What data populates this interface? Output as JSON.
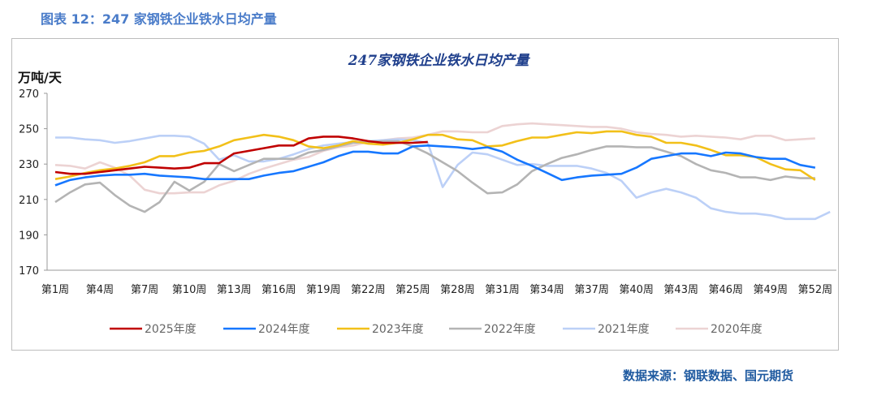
{
  "figure_title": "图表 12：247 家钢铁企业铁水日均产量",
  "source": "数据来源：钢联数据、国元期货",
  "chart_data": {
    "type": "line",
    "title": "247家钢铁企业铁水日均产量",
    "ylabel": "万吨/天",
    "xlabel": "",
    "ylim": [
      170,
      270
    ],
    "yticks": [
      170,
      190,
      210,
      230,
      250,
      270
    ],
    "xtick_labels": [
      "第1周",
      "第4周",
      "第7周",
      "第10周",
      "第13周",
      "第16周",
      "第19周",
      "第22周",
      "第25周",
      "第28周",
      "第31周",
      "第34周",
      "第37周",
      "第40周",
      "第43周",
      "第46周",
      "第49周",
      "第52周"
    ],
    "xtick_weeks": [
      1,
      4,
      7,
      10,
      13,
      16,
      19,
      22,
      25,
      28,
      31,
      34,
      37,
      40,
      43,
      46,
      49,
      52
    ],
    "grid": false,
    "legend_position": "bottom",
    "series": [
      {
        "name": "2025年度",
        "color": "#c00000",
        "values": [
          225.5,
          224.5,
          224.5,
          225.5,
          226.5,
          227.5,
          228.5,
          228,
          227.5,
          228,
          230.5,
          230.5,
          236,
          237.5,
          239,
          240.5,
          240.5,
          244.5,
          245.5,
          245.5,
          244.5,
          243,
          242,
          242,
          242,
          242.5
        ]
      },
      {
        "name": "2024年度",
        "color": "#1677ff",
        "values": [
          218,
          221,
          222.5,
          223.5,
          224,
          224,
          224.5,
          223.5,
          223,
          222.5,
          221.5,
          221.5,
          221.5,
          221.5,
          223.5,
          225,
          226,
          228.5,
          231,
          234.5,
          237,
          237,
          236,
          236,
          240,
          240.5,
          240,
          239.5,
          238.5,
          239.5,
          237,
          232.5,
          229,
          225,
          221,
          222.5,
          223.5,
          224,
          224.5,
          228,
          233,
          234.5,
          236,
          236,
          234.5,
          236.5,
          236,
          234,
          233,
          233,
          229.5,
          228
        ]
      },
      {
        "name": "2023年度",
        "color": "#f2c019",
        "values": [
          221.5,
          223,
          225,
          226.5,
          227.5,
          229,
          231,
          234.5,
          234.5,
          236.5,
          237.5,
          240,
          243.5,
          245,
          246.5,
          245.5,
          243.5,
          240,
          239,
          240.5,
          243,
          241.5,
          241,
          242,
          244,
          246.5,
          246.5,
          244,
          243.5,
          240,
          240.5,
          243,
          245,
          245,
          246.5,
          248,
          247.5,
          248.5,
          248.5,
          246.5,
          245.5,
          242,
          242,
          240.5,
          238,
          235,
          235,
          234,
          230,
          227,
          226.5,
          221
        ]
      },
      {
        "name": "2022年度",
        "color": "#b4b4b4",
        "values": [
          208.5,
          214,
          218.5,
          219.5,
          212.5,
          206.5,
          203,
          208.5,
          220,
          215,
          220,
          230,
          226,
          229.5,
          233,
          233,
          233,
          236.5,
          238,
          240,
          242,
          242.5,
          243,
          243,
          240,
          236,
          231,
          226,
          219.5,
          213.5,
          214,
          218.5,
          226,
          230,
          233.5,
          235.5,
          238,
          240,
          240,
          239.5,
          239.5,
          237,
          234.5,
          230,
          226.5,
          225,
          222.5,
          222.5,
          221,
          223,
          222,
          222
        ]
      },
      {
        "name": "2021年度",
        "color": "#bcd0f7",
        "values": [
          245,
          245,
          244,
          243.5,
          242,
          243,
          244.5,
          246,
          246,
          245.5,
          241.5,
          232.5,
          235,
          231.5,
          231.5,
          233,
          235.5,
          238.5,
          240.5,
          241.5,
          242.5,
          243,
          243.5,
          244,
          243.5,
          242,
          217,
          229.5,
          236.5,
          235.5,
          232.5,
          229.5,
          230,
          229,
          229,
          229,
          227.5,
          225,
          220.5,
          211,
          214,
          216,
          214,
          211,
          205,
          203,
          202,
          202,
          201,
          199,
          199,
          199,
          203
        ]
      },
      {
        "name": "2020年度",
        "color": "#ecd3d3",
        "values": [
          229.5,
          229,
          227.5,
          231,
          228,
          223.5,
          215.5,
          213.5,
          213.5,
          214,
          214,
          218,
          220.5,
          224.5,
          227.5,
          230,
          232.5,
          234,
          237.5,
          239.5,
          240.5,
          242.5,
          243.5,
          244.5,
          245,
          246.5,
          248.5,
          248.5,
          248,
          248,
          251.5,
          252.5,
          253,
          252.5,
          252,
          251.5,
          251,
          251,
          250,
          248,
          247,
          246.5,
          245.5,
          246,
          245.5,
          245,
          244,
          246,
          246,
          243.5,
          244,
          244.5
        ]
      }
    ]
  }
}
